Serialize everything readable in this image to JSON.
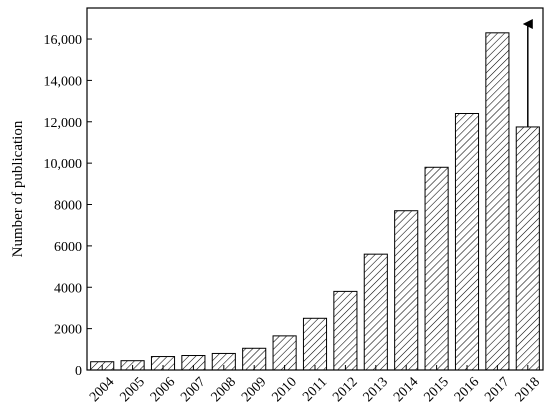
{
  "chart_data": {
    "type": "bar",
    "title": "",
    "xlabel": "",
    "ylabel": "Number of publication",
    "categories": [
      "2004",
      "2005",
      "2006",
      "2007",
      "2008",
      "2009",
      "2010",
      "2011",
      "2012",
      "2013",
      "2014",
      "2015",
      "2016",
      "2017",
      "2018"
    ],
    "values": [
      400,
      450,
      650,
      700,
      800,
      1050,
      1650,
      2500,
      3800,
      5600,
      7700,
      9800,
      12400,
      16300,
      11750
    ],
    "ylim": [
      0,
      17500
    ],
    "yticks": [
      0,
      2000,
      4000,
      6000,
      8000,
      10000,
      12000,
      14000,
      16000
    ],
    "ytick_labels": [
      "0",
      "2000",
      "4000",
      "6000",
      "8000",
      "10,000",
      "12,000",
      "14,000",
      "16,000"
    ],
    "grid": false,
    "legend": "none",
    "bar_fill": "diagonal-hatch",
    "annotation": {
      "type": "upward-arrow",
      "category": "2018"
    },
    "colors": {
      "bar_stroke": "#000000",
      "hatch": "#000000",
      "background": "#ffffff"
    }
  }
}
